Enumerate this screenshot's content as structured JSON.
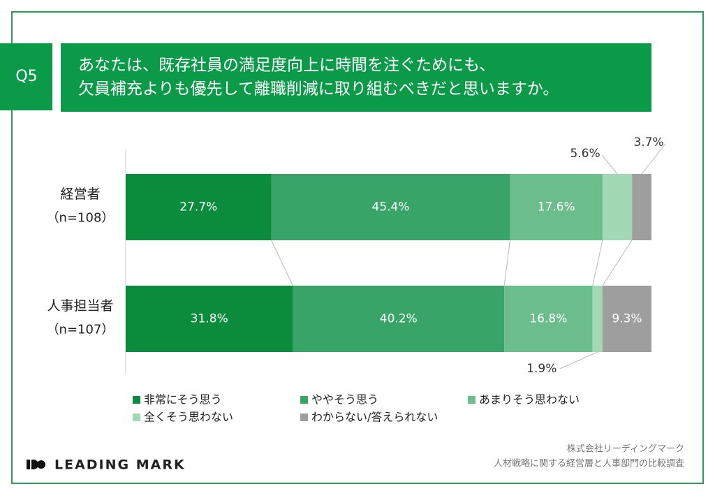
{
  "chart_data": {
    "type": "stacked-bar-horizontal",
    "question_label": "Q5",
    "title_lines": [
      "あなたは、既存社員の満足度向上に時間を注ぐためにも、",
      "欠員補充よりも優先して離職削減に取り組むべきだと思いますか。"
    ],
    "categories": [
      "経営者",
      "人事担当者"
    ],
    "category_notes": [
      "（n=108）",
      "（n=107）"
    ],
    "xlim": [
      0,
      100
    ],
    "series": [
      {
        "name": "非常にそう思う",
        "color": "#0a8c3c",
        "values": [
          27.7,
          31.8
        ],
        "value_labels": [
          "27.7%",
          "31.8%"
        ]
      },
      {
        "name": "ややそう思う",
        "color": "#38a468",
        "values": [
          45.4,
          40.2
        ],
        "value_labels": [
          "45.4%",
          "40.2%"
        ]
      },
      {
        "name": "あまりそう思わない",
        "color": "#6cbd8c",
        "values": [
          17.6,
          16.8
        ],
        "value_labels": [
          "17.6%",
          "16.8%"
        ]
      },
      {
        "name": "全くそう思わない",
        "color": "#a2d8b4",
        "values": [
          5.6,
          1.9
        ],
        "value_labels": [
          "5.6%",
          "1.9%"
        ]
      },
      {
        "name": "わからない/答えられない",
        "color": "#9e9e9e",
        "values": [
          3.7,
          9.3
        ],
        "value_labels": [
          "3.7%",
          "9.3%"
        ]
      }
    ],
    "footer": {
      "logo": "LEADING MARK",
      "company": "株式会社リーディングマーク",
      "survey": "人材戦略に関する経営層と人事部門の比較調査"
    }
  }
}
